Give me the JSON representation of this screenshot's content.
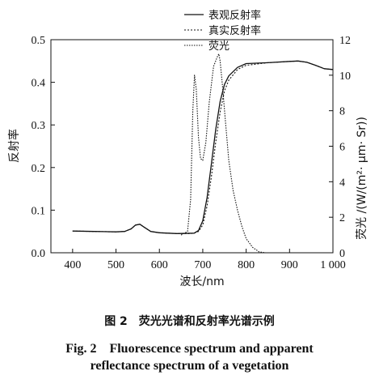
{
  "chart_data": {
    "type": "line",
    "x_axis": {
      "label": "波长/nm",
      "range": [
        350,
        1000
      ],
      "ticks": [
        400,
        500,
        600,
        700,
        800,
        900,
        1000
      ],
      "tick_labels": [
        "400",
        "500",
        "600",
        "700",
        "800",
        "900",
        "1 000"
      ]
    },
    "y_left": {
      "label": "反射率",
      "range": [
        0,
        0.5
      ],
      "ticks": [
        0,
        0.1,
        0.2,
        0.3,
        0.4,
        0.5
      ],
      "tick_labels": [
        "0.0",
        "0.1",
        "0.2",
        "0.3",
        "0.4",
        "0.5"
      ]
    },
    "y_right": {
      "label": "荧光 /(W/(m²· μm· Sr))",
      "range": [
        0,
        12
      ],
      "ticks": [
        0,
        2,
        4,
        6,
        8,
        10,
        12
      ],
      "tick_labels": [
        "0",
        "2",
        "4",
        "6",
        "8",
        "10",
        "12"
      ]
    },
    "legend": {
      "placement": "top-center",
      "entries": [
        "表观反射率",
        "真实反射率",
        "荧光"
      ]
    },
    "series": [
      {
        "name": "表观反射率",
        "axis": "left",
        "style": "solid",
        "x": [
          400,
          450,
          500,
          520,
          535,
          545,
          555,
          565,
          580,
          600,
          640,
          680,
          690,
          700,
          710,
          720,
          730,
          740,
          750,
          760,
          780,
          800,
          850,
          900,
          920,
          940,
          960,
          980,
          1000
        ],
        "y": [
          0.051,
          0.05,
          0.049,
          0.05,
          0.056,
          0.065,
          0.067,
          0.06,
          0.05,
          0.047,
          0.045,
          0.046,
          0.052,
          0.075,
          0.13,
          0.21,
          0.29,
          0.355,
          0.395,
          0.415,
          0.435,
          0.444,
          0.446,
          0.449,
          0.45,
          0.447,
          0.44,
          0.432,
          0.43
        ]
      },
      {
        "name": "真实反射率",
        "axis": "left",
        "style": "dotted",
        "x": [
          400,
          450,
          500,
          520,
          535,
          545,
          555,
          565,
          580,
          600,
          640,
          670,
          680,
          690,
          700,
          710,
          720,
          730,
          740,
          750,
          760,
          780,
          800,
          850,
          900,
          920,
          940,
          960,
          980,
          1000
        ],
        "y": [
          0.051,
          0.05,
          0.049,
          0.05,
          0.056,
          0.065,
          0.067,
          0.06,
          0.05,
          0.047,
          0.045,
          0.045,
          0.046,
          0.05,
          0.065,
          0.11,
          0.18,
          0.26,
          0.33,
          0.38,
          0.405,
          0.43,
          0.44,
          0.446,
          0.449,
          0.45,
          0.447,
          0.44,
          0.432,
          0.43
        ]
      },
      {
        "name": "荧光",
        "axis": "right",
        "style": "densely-dotted",
        "x": [
          650,
          665,
          672,
          677,
          681,
          685,
          690,
          695,
          700,
          707,
          715,
          725,
          733,
          737,
          740,
          745,
          752,
          760,
          770,
          780,
          790,
          800,
          815,
          830,
          845
        ],
        "y": [
          1.0,
          1.2,
          3.0,
          8.0,
          10.0,
          9.2,
          6.5,
          5.3,
          5.2,
          6.2,
          8.5,
          10.5,
          11.0,
          11.2,
          10.8,
          9.5,
          7.5,
          5.2,
          3.5,
          2.4,
          1.5,
          0.8,
          0.3,
          0.05,
          0
        ]
      }
    ]
  },
  "caption": {
    "cn": "图 2　荧光光谱和反射率光谱示例",
    "en_line1": "Fig. 2　Fluorescence spectrum and apparent",
    "en_line2": "reflectance spectrum of a vegetation"
  }
}
